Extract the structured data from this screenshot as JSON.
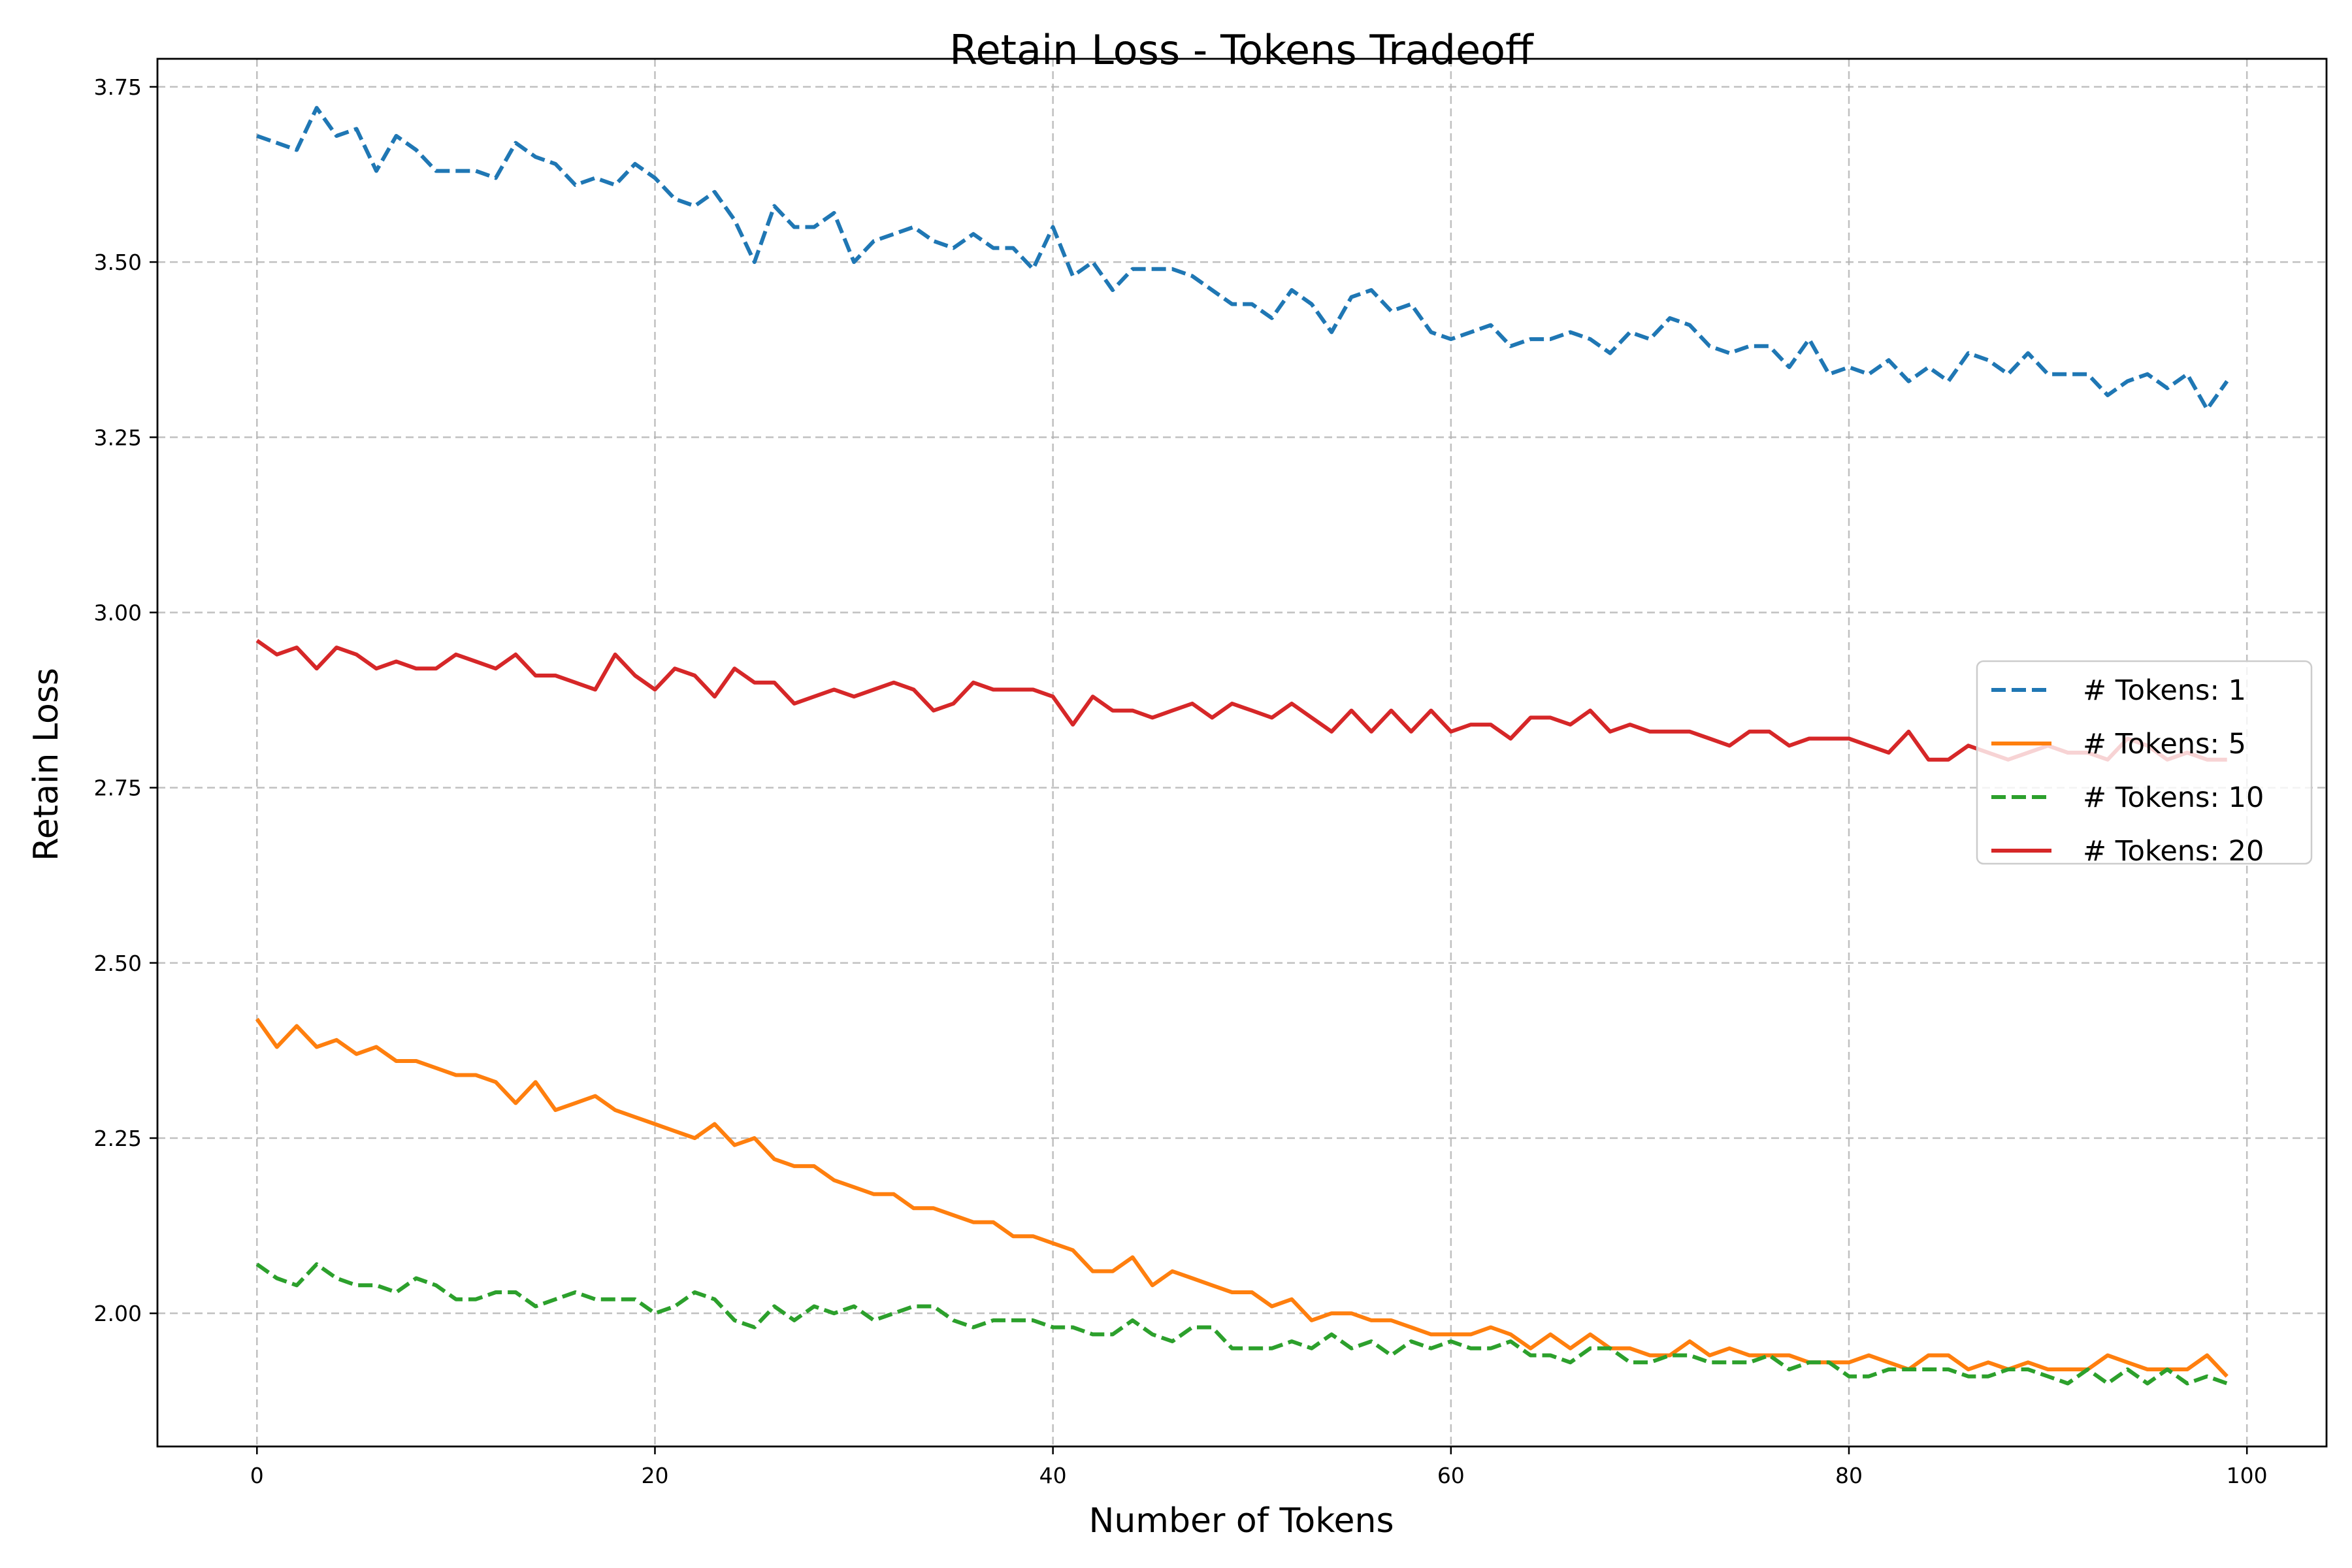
{
  "chart_data": {
    "type": "line",
    "title": "Retain Loss - Tokens Tradeoff",
    "xlabel": "Number of Tokens",
    "ylabel": "Retain Loss",
    "xlim": [
      -5,
      104
    ],
    "ylim": [
      1.81,
      3.79
    ],
    "xticks": [
      0,
      20,
      40,
      60,
      80,
      100
    ],
    "yticks": [
      2.0,
      2.25,
      2.5,
      2.75,
      3.0,
      3.25,
      3.5,
      3.75
    ],
    "ytick_labels": [
      "2.00",
      "2.25",
      "2.50",
      "2.75",
      "3.00",
      "3.25",
      "3.50",
      "3.75"
    ],
    "grid": true,
    "legend_position": "center-right",
    "series": [
      {
        "name": "# Tokens: 1",
        "color": "#1f77b4",
        "dashed": true,
        "values": [
          3.68,
          3.67,
          3.66,
          3.72,
          3.68,
          3.69,
          3.63,
          3.68,
          3.66,
          3.63,
          3.63,
          3.63,
          3.62,
          3.67,
          3.65,
          3.64,
          3.61,
          3.62,
          3.61,
          3.64,
          3.62,
          3.59,
          3.58,
          3.6,
          3.56,
          3.5,
          3.58,
          3.55,
          3.55,
          3.57,
          3.5,
          3.53,
          3.54,
          3.55,
          3.53,
          3.52,
          3.54,
          3.52,
          3.52,
          3.49,
          3.55,
          3.48,
          3.5,
          3.46,
          3.49,
          3.49,
          3.49,
          3.48,
          3.46,
          3.44,
          3.44,
          3.42,
          3.46,
          3.44,
          3.4,
          3.45,
          3.46,
          3.43,
          3.44,
          3.4,
          3.39,
          3.4,
          3.41,
          3.38,
          3.39,
          3.39,
          3.4,
          3.39,
          3.37,
          3.4,
          3.39,
          3.42,
          3.41,
          3.38,
          3.37,
          3.38,
          3.38,
          3.35,
          3.39,
          3.34,
          3.35,
          3.34,
          3.36,
          3.33,
          3.35,
          3.33,
          3.37,
          3.36,
          3.34,
          3.37,
          3.34,
          3.34,
          3.34,
          3.31,
          3.33,
          3.34,
          3.32,
          3.34,
          3.29,
          3.33
        ]
      },
      {
        "name": "# Tokens: 5",
        "color": "#ff7f0e",
        "dashed": false,
        "values": [
          2.42,
          2.38,
          2.41,
          2.38,
          2.39,
          2.37,
          2.38,
          2.36,
          2.36,
          2.35,
          2.34,
          2.34,
          2.33,
          2.3,
          2.33,
          2.29,
          2.3,
          2.31,
          2.29,
          2.28,
          2.27,
          2.26,
          2.25,
          2.27,
          2.24,
          2.25,
          2.22,
          2.21,
          2.21,
          2.19,
          2.18,
          2.17,
          2.17,
          2.15,
          2.15,
          2.14,
          2.13,
          2.13,
          2.11,
          2.11,
          2.1,
          2.09,
          2.06,
          2.06,
          2.08,
          2.04,
          2.06,
          2.05,
          2.04,
          2.03,
          2.03,
          2.01,
          2.02,
          1.99,
          2.0,
          2.0,
          1.99,
          1.99,
          1.98,
          1.97,
          1.97,
          1.97,
          1.98,
          1.97,
          1.95,
          1.97,
          1.95,
          1.97,
          1.95,
          1.95,
          1.94,
          1.94,
          1.96,
          1.94,
          1.95,
          1.94,
          1.94,
          1.94,
          1.93,
          1.93,
          1.93,
          1.94,
          1.93,
          1.92,
          1.94,
          1.94,
          1.92,
          1.93,
          1.92,
          1.93,
          1.92,
          1.92,
          1.92,
          1.94,
          1.93,
          1.92,
          1.92,
          1.92,
          1.94,
          1.91
        ]
      },
      {
        "name": "# Tokens: 10",
        "color": "#2ca02c",
        "dashed": true,
        "values": [
          2.07,
          2.05,
          2.04,
          2.07,
          2.05,
          2.04,
          2.04,
          2.03,
          2.05,
          2.04,
          2.02,
          2.02,
          2.03,
          2.03,
          2.01,
          2.02,
          2.03,
          2.02,
          2.02,
          2.02,
          2.0,
          2.01,
          2.03,
          2.02,
          1.99,
          1.98,
          2.01,
          1.99,
          2.01,
          2.0,
          2.01,
          1.99,
          2.0,
          2.01,
          2.01,
          1.99,
          1.98,
          1.99,
          1.99,
          1.99,
          1.98,
          1.98,
          1.97,
          1.97,
          1.99,
          1.97,
          1.96,
          1.98,
          1.98,
          1.95,
          1.95,
          1.95,
          1.96,
          1.95,
          1.97,
          1.95,
          1.96,
          1.94,
          1.96,
          1.95,
          1.96,
          1.95,
          1.95,
          1.96,
          1.94,
          1.94,
          1.93,
          1.95,
          1.95,
          1.93,
          1.93,
          1.94,
          1.94,
          1.93,
          1.93,
          1.93,
          1.94,
          1.92,
          1.93,
          1.93,
          1.91,
          1.91,
          1.92,
          1.92,
          1.92,
          1.92,
          1.91,
          1.91,
          1.92,
          1.92,
          1.91,
          1.9,
          1.92,
          1.9,
          1.92,
          1.9,
          1.92,
          1.9,
          1.91,
          1.9
        ]
      },
      {
        "name": "# Tokens: 20",
        "color": "#d62728",
        "dashed": false,
        "values": [
          2.96,
          2.94,
          2.95,
          2.92,
          2.95,
          2.94,
          2.92,
          2.93,
          2.92,
          2.92,
          2.94,
          2.93,
          2.92,
          2.94,
          2.91,
          2.91,
          2.9,
          2.89,
          2.94,
          2.91,
          2.89,
          2.92,
          2.91,
          2.88,
          2.92,
          2.9,
          2.9,
          2.87,
          2.88,
          2.89,
          2.88,
          2.89,
          2.9,
          2.89,
          2.86,
          2.87,
          2.9,
          2.89,
          2.89,
          2.89,
          2.88,
          2.84,
          2.88,
          2.86,
          2.86,
          2.85,
          2.86,
          2.87,
          2.85,
          2.87,
          2.86,
          2.85,
          2.87,
          2.85,
          2.83,
          2.86,
          2.83,
          2.86,
          2.83,
          2.86,
          2.83,
          2.84,
          2.84,
          2.82,
          2.85,
          2.85,
          2.84,
          2.86,
          2.83,
          2.84,
          2.83,
          2.83,
          2.83,
          2.82,
          2.81,
          2.83,
          2.83,
          2.81,
          2.82,
          2.82,
          2.82,
          2.81,
          2.8,
          2.83,
          2.79,
          2.79,
          2.81,
          2.8,
          2.79,
          2.8,
          2.81,
          2.8,
          2.8,
          2.79,
          2.82,
          2.81,
          2.79,
          2.8,
          2.79,
          2.79
        ]
      }
    ]
  }
}
